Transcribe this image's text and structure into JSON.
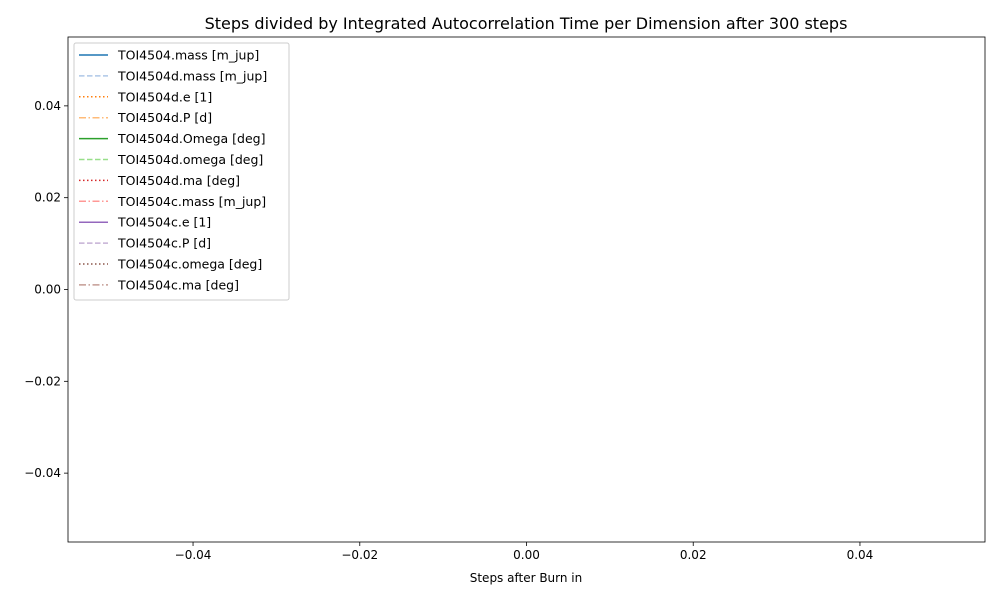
{
  "chart_data": {
    "type": "line",
    "title": "Steps divided by Integrated Autocorrelation Time per Dimension after 300 steps",
    "xlabel": "Steps after Burn in",
    "ylabel": "",
    "xlim": [
      -0.055,
      0.055
    ],
    "ylim": [
      -0.055,
      0.055
    ],
    "x_ticks": [
      "−0.04",
      "−0.02",
      "0.00",
      "0.02",
      "0.04"
    ],
    "x_tick_values": [
      -0.04,
      -0.02,
      0.0,
      0.02,
      0.04
    ],
    "y_ticks": [
      "−0.04",
      "−0.02",
      "0.00",
      "0.02",
      "0.04"
    ],
    "y_tick_values": [
      -0.04,
      -0.02,
      0.0,
      0.02,
      0.04
    ],
    "grid": false,
    "legend_position": "top-left",
    "series": [
      {
        "name": "TOI4504.mass [m_jup]",
        "color": "#1f77b4",
        "dash": "solid",
        "values": []
      },
      {
        "name": "TOI4504d.mass [m_jup]",
        "color": "#aec7e8",
        "dash": "dashed",
        "values": []
      },
      {
        "name": "TOI4504d.e [1]",
        "color": "#ff7f0e",
        "dash": "dotted",
        "values": []
      },
      {
        "name": "TOI4504d.P [d]",
        "color": "#ffbb78",
        "dash": "dashdot",
        "values": []
      },
      {
        "name": "TOI4504d.Omega [deg]",
        "color": "#2ca02c",
        "dash": "solid",
        "values": []
      },
      {
        "name": "TOI4504d.omega [deg]",
        "color": "#98df8a",
        "dash": "dashed",
        "values": []
      },
      {
        "name": "TOI4504d.ma [deg]",
        "color": "#d62728",
        "dash": "dotted",
        "values": []
      },
      {
        "name": "TOI4504c.mass [m_jup]",
        "color": "#ff9896",
        "dash": "dashdot",
        "values": []
      },
      {
        "name": "TOI4504c.e [1]",
        "color": "#9467bd",
        "dash": "solid",
        "values": []
      },
      {
        "name": "TOI4504c.P [d]",
        "color": "#c5b0d5",
        "dash": "dashed",
        "values": []
      },
      {
        "name": "TOI4504c.omega [deg]",
        "color": "#8c564b",
        "dash": "dotted",
        "values": []
      },
      {
        "name": "TOI4504c.ma [deg]",
        "color": "#c49c94",
        "dash": "dashdot",
        "values": []
      }
    ]
  }
}
